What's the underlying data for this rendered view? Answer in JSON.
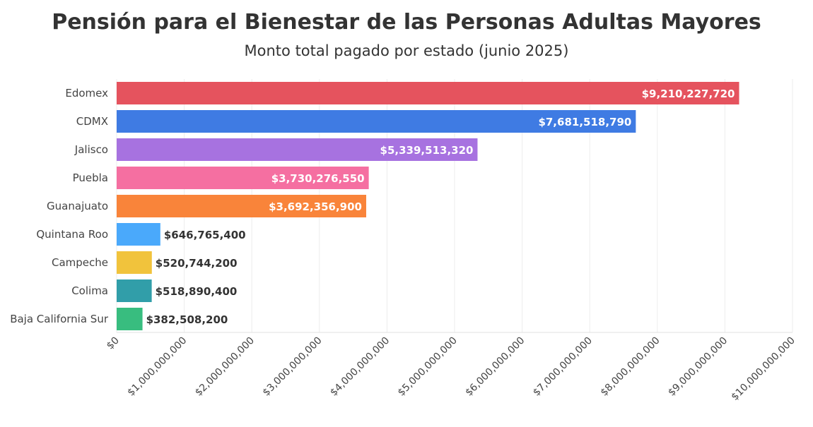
{
  "chart_data": {
    "type": "bar",
    "orientation": "horizontal",
    "title": "Pensión para el Bienestar de las Personas Adultas Mayores",
    "subtitle": "Monto total pagado por estado (junio 2025)",
    "categories": [
      "Edomex",
      "CDMX",
      "Jalisco",
      "Puebla",
      "Guanajuato",
      "Quintana Roo",
      "Campeche",
      "Colima",
      "Baja California Sur"
    ],
    "values": [
      9210227720,
      7681518790,
      5339513320,
      3730276550,
      3692356900,
      646765400,
      520744200,
      518890400,
      382508200
    ],
    "data_labels": [
      "$9,210,227,720",
      "$7,681,518,790",
      "$5,339,513,320",
      "$3,730,276,550",
      "$3,692,356,900",
      "$646,765,400",
      "$520,744,200",
      "$518,890,400",
      "$382,508,200"
    ],
    "colors": [
      "#e5535e",
      "#3f7be3",
      "#a772e0",
      "#f56fa1",
      "#f9843a",
      "#4aa9fb",
      "#f1c33c",
      "#319ea9",
      "#38bd7f"
    ],
    "xlim": [
      0,
      10000000000
    ],
    "xticks": [
      0,
      1000000000,
      2000000000,
      3000000000,
      4000000000,
      5000000000,
      6000000000,
      7000000000,
      8000000000,
      9000000000,
      10000000000
    ],
    "xtick_labels": [
      "$0",
      "$1,000,000,000",
      "$2,000,000,000",
      "$3,000,000,000",
      "$4,000,000,000",
      "$5,000,000,000",
      "$6,000,000,000",
      "$7,000,000,000",
      "$8,000,000,000",
      "$9,000,000,000",
      "$10,000,000,000"
    ],
    "grid": true,
    "xlabel": "",
    "ylabel": ""
  }
}
